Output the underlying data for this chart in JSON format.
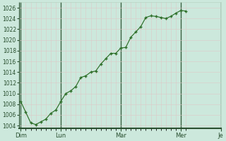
{
  "x_labels": [
    "Dim",
    "Lun",
    "Mar",
    "Mer",
    "Je"
  ],
  "ylim": [
    1003.5,
    1027
  ],
  "yticks": [
    1004,
    1006,
    1008,
    1010,
    1012,
    1014,
    1016,
    1018,
    1020,
    1022,
    1024,
    1026
  ],
  "line_color": "#2d6e28",
  "bg_color": "#cce8dc",
  "grid_major_color": "#b8d4c4",
  "grid_minor_vert_color": "#ddc8c8",
  "grid_major_vert_color": "#3a6040",
  "axis_color": "#2a5030",
  "tick_label_color": "#2a5030",
  "y_values": [
    1008.5,
    1006.5,
    1004.5,
    1004.2,
    1004.7,
    1005.2,
    1006.3,
    1006.9,
    1008.5,
    1010.0,
    1010.5,
    1011.3,
    1013.0,
    1013.3,
    1014.0,
    1014.2,
    1015.5,
    1016.5,
    1017.5,
    1017.5,
    1018.5,
    1018.6,
    1020.5,
    1021.5,
    1022.5,
    1024.2,
    1024.5,
    1024.4,
    1024.2,
    1024.0,
    1024.4,
    1025.0,
    1025.5,
    1025.4
  ],
  "num_points": 34,
  "total_days": 4.25
}
